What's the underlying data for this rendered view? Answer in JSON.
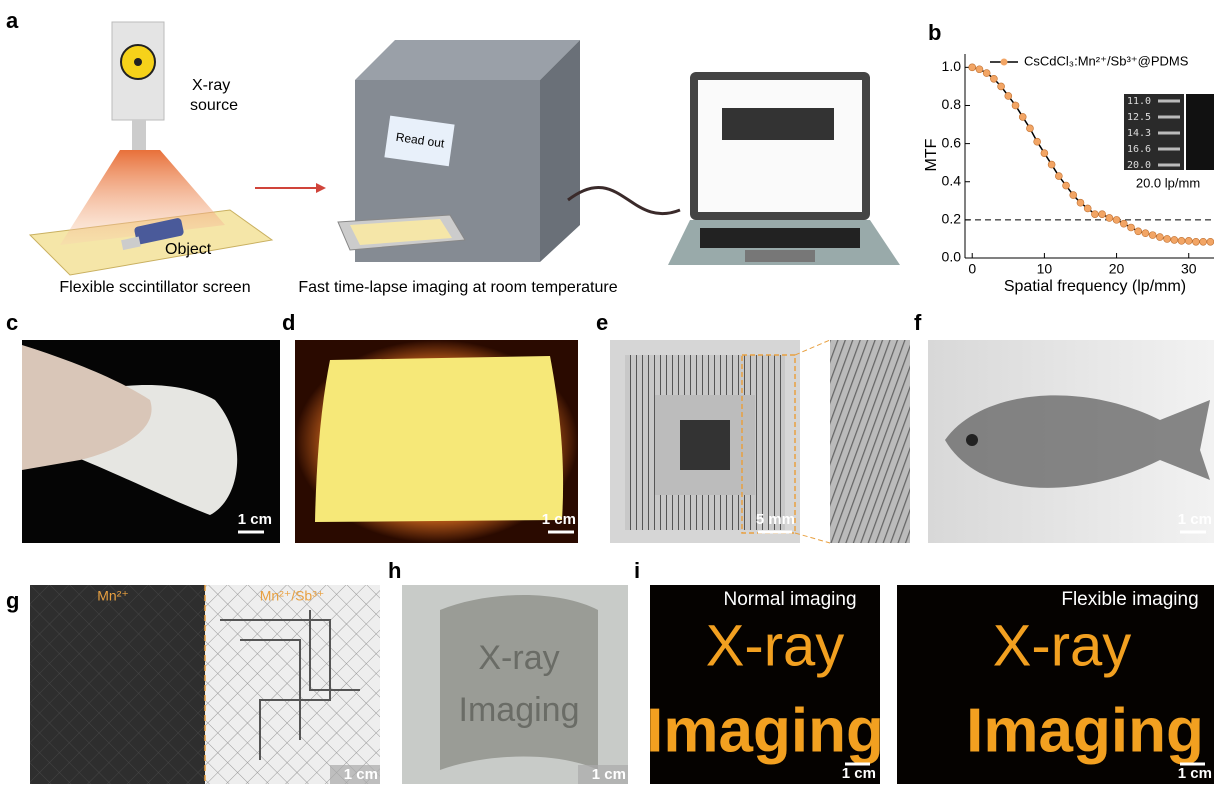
{
  "panel_labels": [
    "a",
    "b",
    "c",
    "d",
    "e",
    "f",
    "g",
    "h",
    "i"
  ],
  "panel_a": {
    "source_label": [
      "X-ray",
      "source"
    ],
    "object_label": "Object",
    "reader_label": "Read out",
    "captions": [
      "Flexible sccintillator screen",
      "Fast time-lapse imaging at room temperature"
    ]
  },
  "chart_data": {
    "type": "line",
    "ylabel": "MTF",
    "xlabel": "Spatial frequency (lp/mm)",
    "x": [
      0,
      1,
      2,
      3,
      4,
      5,
      6,
      7,
      8,
      9,
      10,
      11,
      12,
      13,
      14,
      15,
      16,
      17,
      18,
      19,
      20,
      21,
      22,
      23,
      24,
      25,
      26,
      27,
      28,
      29,
      30,
      31,
      32,
      33
    ],
    "series": [
      {
        "name": "CsCdCl₃:Mn²⁺/Sb³⁺@PDMS",
        "color": "#f2a565",
        "values": [
          1.0,
          0.99,
          0.97,
          0.94,
          0.9,
          0.85,
          0.8,
          0.74,
          0.68,
          0.61,
          0.55,
          0.49,
          0.43,
          0.38,
          0.33,
          0.29,
          0.26,
          0.23,
          0.23,
          0.21,
          0.2,
          0.18,
          0.16,
          0.14,
          0.13,
          0.12,
          0.11,
          0.1,
          0.095,
          0.09,
          0.09,
          0.085,
          0.085,
          0.085
        ]
      }
    ],
    "xlim": [
      -1,
      33.5
    ],
    "ylim": [
      0,
      1.07
    ],
    "xticks": [
      0,
      10,
      20,
      30
    ],
    "yticks": [
      {
        "value": 0,
        "label": "0.0"
      },
      {
        "value": 0.2,
        "label": "0.2"
      },
      {
        "value": 0.4,
        "label": "0.4"
      },
      {
        "value": 0.6,
        "label": "0.6"
      },
      {
        "value": 0.8,
        "label": "0.8"
      },
      {
        "value": 1,
        "label": "1.0"
      }
    ],
    "reference_line": 0.2,
    "inset": {
      "labels": [
        "11.0",
        "12.5",
        "14.3",
        "16.6",
        "20.0"
      ],
      "caption": "20.0 lp/mm"
    }
  },
  "scale_bars": {
    "c": "1 cm",
    "d": "1 cm",
    "e": "5 mm",
    "f": "1 cm",
    "g": "1 cm",
    "h": "1 cm",
    "i_left": "1 cm",
    "i_right": "1 cm"
  },
  "panel_g": {
    "left": "Mn²⁺",
    "right": "Mn²⁺/Sb³⁺"
  },
  "panel_h": {
    "text": [
      "X-ray",
      "Imaging"
    ]
  },
  "panel_i": {
    "left": "Normal imaging",
    "right": "Flexible imaging",
    "text": [
      "X-ray",
      "Imaging"
    ]
  }
}
